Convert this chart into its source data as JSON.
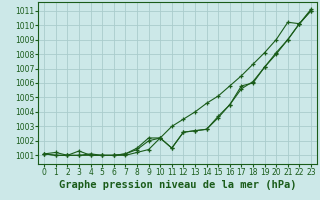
{
  "title": "Graphe pression niveau de la mer (hPa)",
  "xlim": [
    -0.5,
    23.5
  ],
  "ylim": [
    1000.4,
    1011.6
  ],
  "yticks": [
    1001,
    1002,
    1003,
    1004,
    1005,
    1006,
    1007,
    1008,
    1009,
    1010,
    1011
  ],
  "xticks": [
    0,
    1,
    2,
    3,
    4,
    5,
    6,
    7,
    8,
    9,
    10,
    11,
    12,
    13,
    14,
    15,
    16,
    17,
    18,
    19,
    20,
    21,
    22,
    23
  ],
  "background_color": "#cce8e8",
  "grid_color": "#aacccc",
  "line_color": "#1a5c1a",
  "line1_y": [
    1001.1,
    1001.2,
    1001.0,
    1001.3,
    1001.0,
    1001.0,
    1001.0,
    1001.1,
    1001.5,
    1002.2,
    1002.2,
    1003.0,
    1003.5,
    1004.0,
    1004.6,
    1005.1,
    1005.8,
    1006.5,
    1007.3,
    1008.1,
    1009.0,
    1010.2,
    1010.1,
    1011.1
  ],
  "line2_y": [
    1001.1,
    1001.0,
    1001.0,
    1001.0,
    1001.1,
    1001.0,
    1001.0,
    1001.1,
    1001.4,
    1002.0,
    1002.2,
    1001.5,
    1002.6,
    1002.7,
    1002.8,
    1003.7,
    1004.5,
    1005.8,
    1006.0,
    1007.1,
    1008.1,
    1009.0,
    1010.1,
    1011.0
  ],
  "line3_y": [
    1001.1,
    1001.0,
    1001.0,
    1001.0,
    1001.0,
    1001.0,
    1001.0,
    1001.0,
    1001.2,
    1001.4,
    1002.2,
    1001.5,
    1002.6,
    1002.7,
    1002.8,
    1003.6,
    1004.5,
    1005.6,
    1006.1,
    1007.1,
    1008.0,
    1009.0,
    1010.1,
    1011.0
  ],
  "title_fontsize": 7.5,
  "tick_fontsize": 5.5
}
